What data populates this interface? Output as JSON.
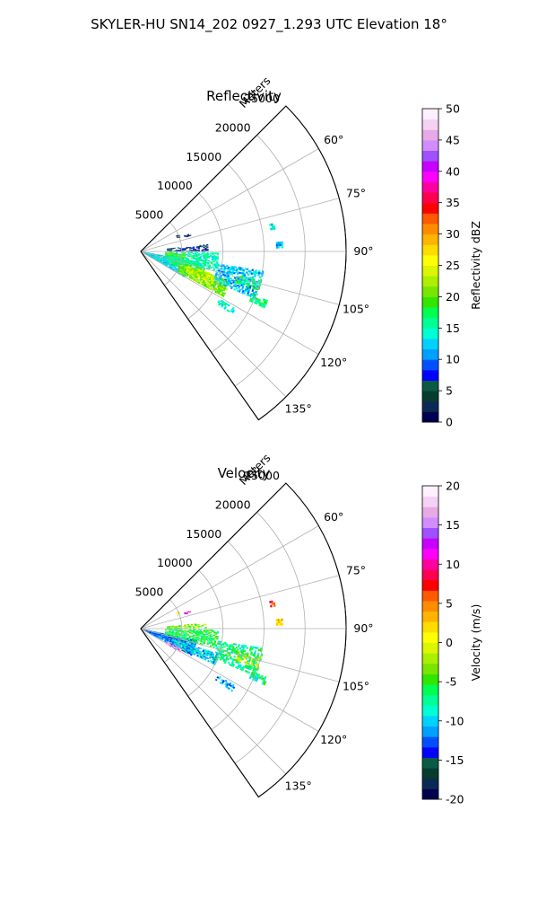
{
  "figure": {
    "title": "SKYLER-HU  SN14_202  0927_1.293 UTC Elevation 18°"
  },
  "chart_data": [
    {
      "type": "heatmap",
      "subtype": "polar-sector",
      "title": "Reflectivity",
      "radial_label": "Meters",
      "r_ticks": [
        5000,
        10000,
        15000,
        20000,
        25000
      ],
      "r_tick_labels": [
        "5000",
        "10000",
        "15000",
        "20000",
        "25000"
      ],
      "r_max": 25000,
      "theta_range_deg": [
        45,
        145
      ],
      "theta_ticks_deg": [
        60,
        75,
        90,
        105,
        120,
        135
      ],
      "theta_tick_labels": [
        "60°",
        "75°",
        "90°",
        "105°",
        "120°",
        "135°"
      ],
      "grid": true,
      "colorbar": {
        "label": "Reflectivity dBZ",
        "range": [
          0,
          50
        ],
        "ticks": [
          0,
          5,
          10,
          15,
          20,
          25,
          30,
          35,
          40,
          45,
          50
        ],
        "tick_labels": [
          "0",
          "5",
          "10",
          "15",
          "20",
          "25",
          "30",
          "35",
          "40",
          "45",
          "50"
        ]
      },
      "colormap": [
        "#000050",
        "#0a2a55",
        "#053c2d",
        "#0a5a46",
        "#0000ff",
        "#0050ff",
        "#00a0ff",
        "#00d2ff",
        "#00ffd2",
        "#00ff96",
        "#00ff50",
        "#32e600",
        "#78e600",
        "#aaf000",
        "#dcf500",
        "#ffff00",
        "#ffdc00",
        "#ffb400",
        "#ff8c00",
        "#ff5a00",
        "#ff0000",
        "#ff0050",
        "#ff00a0",
        "#ff00ff",
        "#c800ff",
        "#a050ff",
        "#d28cff",
        "#e6aae6",
        "#f5d2f5",
        "#fff0ff"
      ],
      "echo_regions": [
        {
          "theta": [
            100,
            120
          ],
          "r": [
            300,
            6000
          ],
          "value": 13,
          "density": 0.85
        },
        {
          "theta": [
            100,
            112
          ],
          "r": [
            3500,
            8000
          ],
          "value": 17,
          "density": 0.75
        },
        {
          "theta": [
            108,
            118
          ],
          "r": [
            5000,
            11500
          ],
          "value": 21,
          "density": 0.8
        },
        {
          "theta": [
            107,
            114
          ],
          "r": [
            6000,
            9500
          ],
          "value": 24,
          "density": 0.55
        },
        {
          "theta": [
            91,
            104
          ],
          "r": [
            3000,
            9500
          ],
          "value": 15,
          "density": 0.65
        },
        {
          "theta": [
            93,
            99
          ],
          "r": [
            3000,
            5500
          ],
          "value": 19,
          "density": 0.55
        },
        {
          "theta": [
            84,
            90
          ],
          "r": [
            3200,
            8200
          ],
          "value": 6,
          "density": 0.55
        },
        {
          "theta": [
            99,
            112
          ],
          "r": [
            9500,
            15000
          ],
          "value": 12,
          "density": 0.55
        },
        {
          "theta": [
            103,
            108
          ],
          "r": [
            12000,
            15000
          ],
          "value": 17,
          "density": 0.45
        },
        {
          "theta": [
            111,
            114
          ],
          "r": [
            14500,
            16500
          ],
          "value": 16,
          "density": 0.75
        },
        {
          "theta": [
            121,
            124
          ],
          "r": [
            11000,
            13500
          ],
          "value": 15,
          "density": 0.55
        },
        {
          "theta": [
            78,
            80
          ],
          "r": [
            16000,
            16600
          ],
          "value": 13,
          "density": 0.7
        },
        {
          "theta": [
            86,
            88
          ],
          "r": [
            16500,
            17200
          ],
          "value": 12,
          "density": 0.7
        },
        {
          "theta": [
            70,
            72
          ],
          "r": [
            5600,
            6400
          ],
          "value": 5,
          "density": 0.5
        },
        {
          "theta": [
            66,
            70
          ],
          "r": [
            4700,
            5100
          ],
          "value": 2,
          "density": 0.5
        }
      ]
    },
    {
      "type": "heatmap",
      "subtype": "polar-sector",
      "title": "Velocity",
      "radial_label": "Meters",
      "r_ticks": [
        5000,
        10000,
        15000,
        20000,
        25000
      ],
      "r_tick_labels": [
        "5000",
        "10000",
        "15000",
        "20000",
        "25000"
      ],
      "r_max": 25000,
      "theta_range_deg": [
        45,
        145
      ],
      "theta_ticks_deg": [
        60,
        75,
        90,
        105,
        120,
        135
      ],
      "theta_tick_labels": [
        "60°",
        "75°",
        "90°",
        "105°",
        "120°",
        "135°"
      ],
      "grid": true,
      "colorbar": {
        "label": "Velocity (m/s)",
        "range": [
          -20,
          20
        ],
        "ticks": [
          -20,
          -15,
          -10,
          -5,
          0,
          5,
          10,
          15,
          20
        ],
        "tick_labels": [
          "-20",
          "-15",
          "-10",
          "-5",
          "0",
          "5",
          "10",
          "15",
          "20"
        ]
      },
      "colormap": [
        "#000050",
        "#0a2a55",
        "#053c2d",
        "#0a5a46",
        "#0000ff",
        "#0050ff",
        "#00a0ff",
        "#00d2ff",
        "#00ffd2",
        "#00ff96",
        "#00ff50",
        "#32e600",
        "#78e600",
        "#aaf000",
        "#dcf500",
        "#ffff00",
        "#ffdc00",
        "#ffb400",
        "#ff8c00",
        "#ff5a00",
        "#ff0000",
        "#ff0050",
        "#ff00a0",
        "#ff00ff",
        "#c800ff",
        "#a050ff",
        "#d28cff",
        "#e6aae6",
        "#f5d2f5",
        "#fff0ff"
      ],
      "echo_regions": [
        {
          "theta": [
            102,
            118
          ],
          "r": [
            300,
            7000
          ],
          "value": -12,
          "density": 0.85
        },
        {
          "theta": [
            108,
            116
          ],
          "r": [
            4000,
            10000
          ],
          "value": -10,
          "density": 0.7
        },
        {
          "theta": [
            116,
            121
          ],
          "r": [
            3500,
            5500
          ],
          "value": 16,
          "density": 0.7
        },
        {
          "theta": [
            91,
            104
          ],
          "r": [
            3000,
            9500
          ],
          "value": -6,
          "density": 0.65
        },
        {
          "theta": [
            85,
            90
          ],
          "r": [
            3200,
            8000
          ],
          "value": -3,
          "density": 0.55
        },
        {
          "theta": [
            99,
            112
          ],
          "r": [
            9500,
            15000
          ],
          "value": -7,
          "density": 0.55
        },
        {
          "theta": [
            103,
            108
          ],
          "r": [
            12000,
            15000
          ],
          "value": -2,
          "density": 0.45
        },
        {
          "theta": [
            111,
            114
          ],
          "r": [
            14500,
            16500
          ],
          "value": -7,
          "density": 0.75
        },
        {
          "theta": [
            121,
            124
          ],
          "r": [
            11000,
            13500
          ],
          "value": -11,
          "density": 0.55
        },
        {
          "theta": [
            78,
            80
          ],
          "r": [
            16000,
            16600
          ],
          "value": 7,
          "density": 0.7
        },
        {
          "theta": [
            86,
            88
          ],
          "r": [
            16500,
            17200
          ],
          "value": 3,
          "density": 0.7
        },
        {
          "theta": [
            70,
            72
          ],
          "r": [
            5600,
            6400
          ],
          "value": 10,
          "density": 0.5
        },
        {
          "theta": [
            66,
            70
          ],
          "r": [
            4700,
            5100
          ],
          "value": 0,
          "density": 0.5
        }
      ]
    }
  ]
}
